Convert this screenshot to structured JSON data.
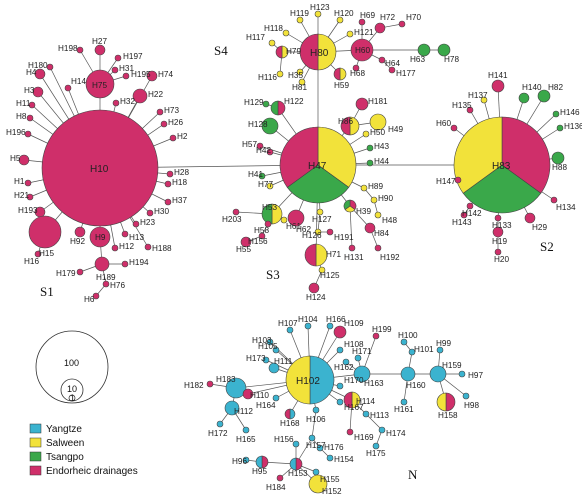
{
  "colors": {
    "yangtze": "#3bb3cf",
    "salween": "#f2e23a",
    "tsangpo": "#3aa84a",
    "endorheic": "#cf2f6a"
  },
  "legend": [
    {
      "key": "yangtze",
      "label": "Yangtze"
    },
    {
      "key": "salween",
      "label": "Salween"
    },
    {
      "key": "tsangpo",
      "label": "Tsangpo"
    },
    {
      "key": "endorheic",
      "label": "Endorheic drainages"
    }
  ],
  "group_labels": {
    "s1": "S1",
    "s2": "S2",
    "s3": "S3",
    "s4": "S4",
    "n": "N"
  },
  "scale": {
    "large": "100",
    "medium": "10",
    "small": "1"
  },
  "big_labels": [
    "H10",
    "H47",
    "H83",
    "H102",
    "H80"
  ],
  "haplotypes": [
    "H1",
    "H2",
    "H3",
    "H4",
    "H5",
    "H6",
    "H7",
    "H8",
    "H9",
    "H10",
    "H11",
    "H12",
    "H13",
    "H14",
    "H15",
    "H16",
    "H17",
    "H18",
    "H19",
    "H20",
    "H21",
    "H22",
    "H23",
    "H24",
    "H25",
    "H26",
    "H27",
    "H28",
    "H29",
    "H30",
    "H31",
    "H32",
    "H33",
    "H34",
    "H35",
    "H36",
    "H37",
    "H38",
    "H39",
    "H40",
    "H41",
    "H42",
    "H43",
    "H44",
    "H45",
    "H46",
    "H47",
    "H48",
    "H49",
    "H50",
    "H51",
    "H52",
    "H53",
    "H54",
    "H55",
    "H56",
    "H57",
    "H58",
    "H59",
    "H60",
    "H61",
    "H62",
    "H63",
    "H64",
    "H65",
    "H66",
    "H67",
    "H68",
    "H69",
    "H70",
    "H71",
    "H72",
    "H73",
    "H74",
    "H75",
    "H76",
    "H77",
    "H78",
    "H79",
    "H80",
    "H81",
    "H82",
    "H83",
    "H84",
    "H85",
    "H86",
    "H87",
    "H88",
    "H89",
    "H90",
    "H91",
    "H92",
    "H93",
    "H94",
    "H95",
    "H96",
    "H97",
    "H98",
    "H99",
    "H100",
    "H101",
    "H102",
    "H103",
    "H104",
    "H105",
    "H106",
    "H107",
    "H108",
    "H109",
    "H110",
    "H111",
    "H112",
    "H113",
    "H114",
    "H115",
    "H116",
    "H117",
    "H118",
    "H119",
    "H120",
    "H121",
    "H122",
    "H123",
    "H124",
    "H125",
    "H126",
    "H127",
    "H128",
    "H129",
    "H130",
    "H131",
    "H132",
    "H133",
    "H134",
    "H135",
    "H136",
    "H137",
    "H138",
    "H139",
    "H140",
    "H141",
    "H142",
    "H143",
    "H144",
    "H145",
    "H146",
    "H147",
    "H148",
    "H149",
    "H150",
    "H151",
    "H152",
    "H153",
    "H154",
    "H155",
    "H156",
    "H157",
    "H158",
    "H159",
    "H160",
    "H161",
    "H162",
    "H163",
    "H164",
    "H165",
    "H166",
    "H167",
    "H168",
    "H169",
    "H170",
    "H171",
    "H172",
    "H173",
    "H174",
    "H175",
    "H176",
    "H177",
    "H178",
    "H179",
    "H180",
    "H181",
    "H182",
    "H183",
    "H184",
    "H185",
    "H186",
    "H187",
    "H188",
    "H189",
    "H190",
    "H191",
    "H192",
    "H193",
    "H194",
    "H195",
    "H196",
    "H197",
    "H198",
    "H199",
    "H200",
    "H201",
    "H202",
    "H203"
  ]
}
